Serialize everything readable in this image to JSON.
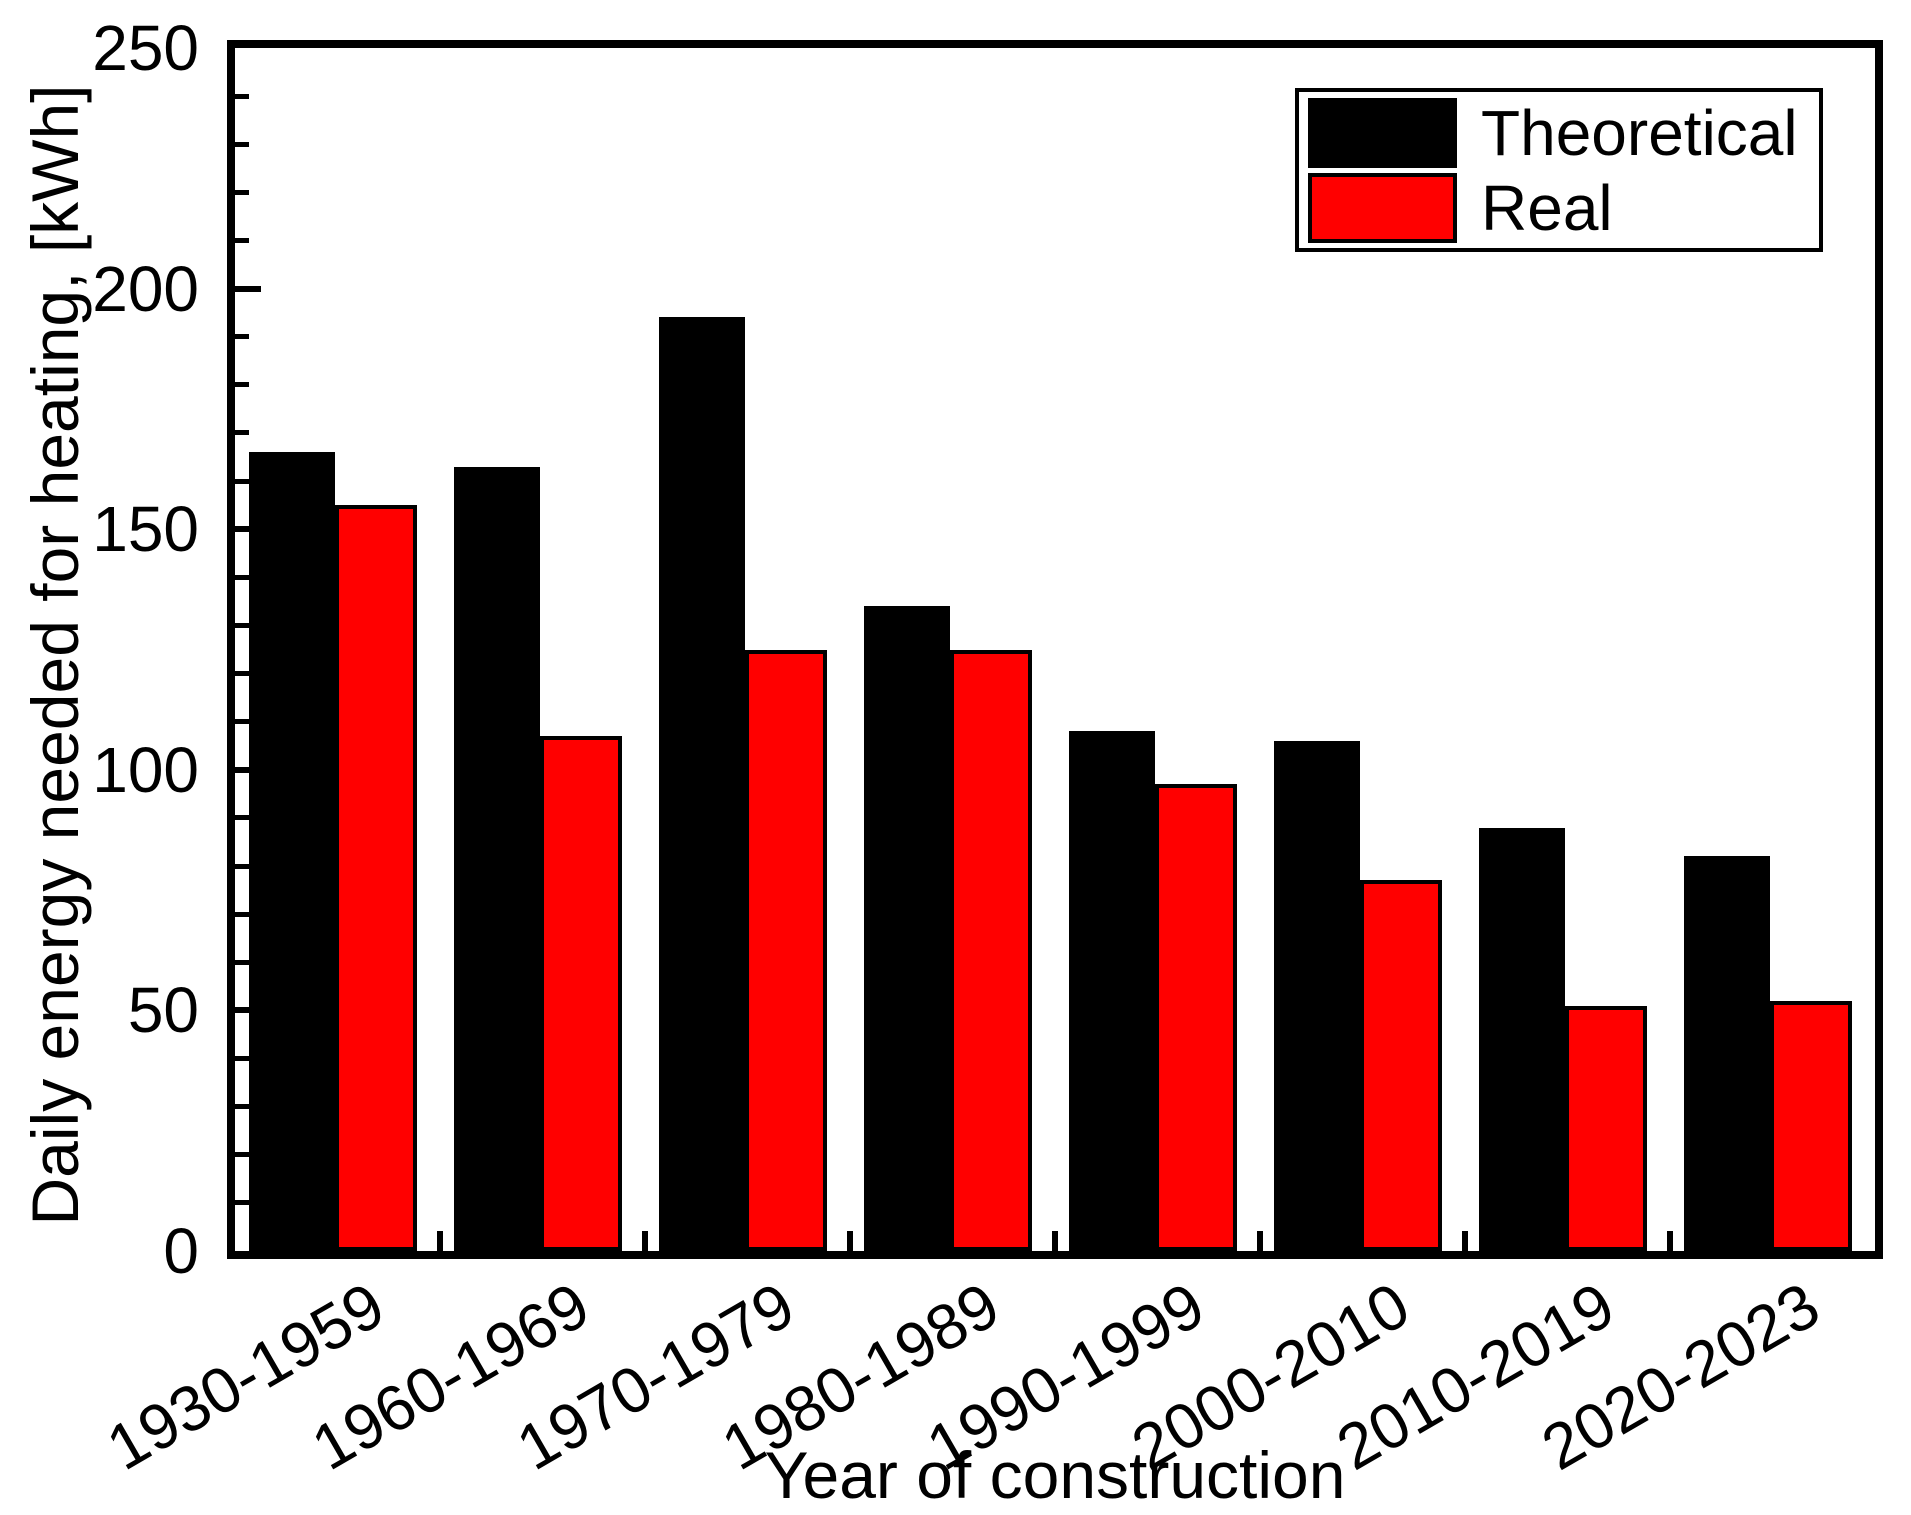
{
  "chart_data": {
    "type": "bar",
    "categories": [
      "1930-1959",
      "1960-1969",
      "1970-1979",
      "1980-1989",
      "1990-1999",
      "2000-2010",
      "2010-2019",
      "2020-2023"
    ],
    "series": [
      {
        "name": "Theoretical",
        "color": "#000000",
        "values": [
          166,
          163,
          194,
          134,
          108,
          106,
          88,
          82
        ]
      },
      {
        "name": "Real",
        "color": "#ff0000",
        "values": [
          155,
          107,
          125,
          125,
          97,
          77,
          51,
          52
        ]
      }
    ],
    "title": "",
    "xlabel": "Year of construction",
    "ylabel": "Daily energy needed for heating, [kWh]",
    "ylim": [
      0,
      250
    ],
    "ytick_labels": [
      "0",
      "50",
      "100",
      "150",
      "200",
      "250"
    ],
    "ytick_major": 50,
    "ytick_minor": 10,
    "grid": false,
    "legend_position": "top-right",
    "bar_outline_color": "#000000",
    "frame_color": "#000000",
    "background_color": "#ffffff"
  }
}
